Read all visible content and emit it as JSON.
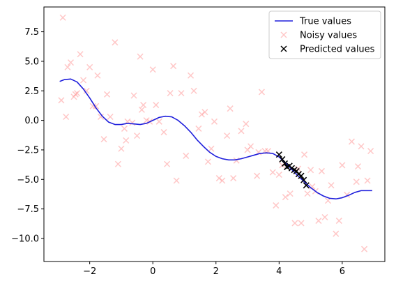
{
  "chart_data": {
    "type": "scatter",
    "xlim": [
      -3.45,
      7.35
    ],
    "ylim": [
      -11.95,
      9.6
    ],
    "xticks": [
      -2,
      0,
      2,
      4,
      6
    ],
    "xtick_labels": [
      "−2",
      "0",
      "2",
      "4",
      "6"
    ],
    "yticks": [
      -10.0,
      -7.5,
      -5.0,
      -2.5,
      0.0,
      2.5,
      5.0,
      7.5
    ],
    "ytick_labels": [
      "−10.0",
      "−7.5",
      "−5.0",
      "−2.5",
      "0.0",
      "2.5",
      "5.0",
      "7.5"
    ],
    "grid": false,
    "legend_position": "top-right",
    "series": [
      {
        "name": "True values",
        "kind": "line",
        "color": "#1f1fdc",
        "x": [
          -2.95,
          -2.8,
          -2.6,
          -2.4,
          -2.2,
          -2.0,
          -1.8,
          -1.6,
          -1.4,
          -1.2,
          -1.0,
          -0.8,
          -0.6,
          -0.4,
          -0.2,
          0.0,
          0.2,
          0.4,
          0.6,
          0.8,
          1.0,
          1.2,
          1.4,
          1.6,
          1.8,
          2.0,
          2.2,
          2.4,
          2.6,
          2.8,
          3.0,
          3.2,
          3.4,
          3.6,
          3.8,
          4.0,
          4.2,
          4.4,
          4.6,
          4.8,
          5.0,
          5.2,
          5.4,
          5.6,
          5.8,
          6.0,
          6.2,
          6.4,
          6.6,
          6.8,
          6.95
        ],
        "y": [
          3.3,
          3.45,
          3.5,
          3.25,
          2.65,
          1.9,
          1.05,
          0.35,
          -0.15,
          -0.35,
          -0.35,
          -0.25,
          -0.3,
          -0.35,
          -0.25,
          0.0,
          0.25,
          0.35,
          0.3,
          0.0,
          -0.45,
          -1.0,
          -1.65,
          -2.2,
          -2.7,
          -3.05,
          -3.25,
          -3.35,
          -3.35,
          -3.25,
          -3.1,
          -2.95,
          -2.8,
          -2.75,
          -2.8,
          -3.1,
          -3.6,
          -4.15,
          -4.7,
          -5.2,
          -5.7,
          -6.1,
          -6.4,
          -6.6,
          -6.65,
          -6.55,
          -6.35,
          -6.1,
          -5.95,
          -5.95,
          -5.95
        ]
      },
      {
        "name": "Noisy values",
        "kind": "scatter",
        "marker": "x",
        "color": "#ff9b9b",
        "opacity": 0.5,
        "x": [
          -2.9,
          -2.85,
          -2.75,
          -2.7,
          -2.6,
          -2.5,
          -2.45,
          -2.4,
          -2.3,
          -2.2,
          -2.1,
          -2.0,
          -1.9,
          -1.8,
          -1.75,
          -1.65,
          -1.55,
          -1.45,
          -1.35,
          -1.2,
          -1.1,
          -1.0,
          -0.9,
          -0.85,
          -0.8,
          -0.65,
          -0.6,
          -0.5,
          -0.4,
          -0.35,
          -0.3,
          -0.2,
          -0.1,
          0.0,
          0.1,
          0.2,
          0.35,
          0.45,
          0.55,
          0.65,
          0.75,
          0.9,
          1.05,
          1.2,
          1.3,
          1.45,
          1.55,
          1.65,
          1.75,
          1.85,
          1.95,
          2.1,
          2.2,
          2.35,
          2.45,
          2.55,
          2.65,
          2.8,
          2.95,
          3.0,
          3.1,
          3.3,
          3.35,
          3.45,
          3.55,
          3.65,
          3.8,
          3.9,
          4.0,
          4.1,
          4.2,
          4.35,
          4.5,
          4.6,
          4.7,
          4.8,
          4.9,
          5.0,
          5.05,
          5.15,
          5.25,
          5.35,
          5.45,
          5.55,
          5.65,
          5.8,
          5.9,
          6.0,
          6.15,
          6.3,
          6.45,
          6.5,
          6.6,
          6.7,
          6.8,
          6.9
        ],
        "y": [
          1.7,
          8.7,
          0.3,
          4.5,
          4.9,
          2.0,
          2.2,
          2.3,
          5.6,
          3.4,
          2.5,
          4.5,
          1.2,
          1.2,
          3.8,
          0.3,
          -1.6,
          2.2,
          0.3,
          6.6,
          -3.7,
          -2.4,
          -0.7,
          -1.7,
          -0.1,
          -0.2,
          2.1,
          -1.3,
          5.4,
          0.9,
          1.3,
          0.0,
          -0.1,
          4.3,
          1.3,
          -0.1,
          -1.0,
          -3.7,
          2.3,
          4.6,
          -5.1,
          2.3,
          -3.0,
          3.8,
          2.5,
          -0.7,
          0.5,
          0.7,
          -3.5,
          -2.4,
          -0.1,
          -4.9,
          -5.1,
          -1.3,
          1.0,
          -4.9,
          -3.4,
          -0.9,
          -0.3,
          -2.5,
          -2.2,
          -4.7,
          -2.7,
          2.4,
          -2.6,
          -2.6,
          -4.4,
          -7.2,
          -4.6,
          -3.8,
          -6.5,
          -6.2,
          -8.7,
          -4.1,
          -8.7,
          -2.9,
          -6.2,
          -4.2,
          -5.6,
          -6.0,
          -8.5,
          -4.3,
          -8.2,
          -6.8,
          -5.5,
          -9.6,
          -8.5,
          -3.8,
          -6.3,
          -1.8,
          -5.2,
          -3.9,
          -2.2,
          -10.9,
          -5.1,
          -2.6
        ]
      },
      {
        "name": "Predicted values",
        "kind": "scatter",
        "marker": "x",
        "color": "#000000",
        "x": [
          4.0,
          4.1,
          4.18,
          4.25,
          4.33,
          4.4,
          4.48,
          4.55,
          4.62,
          4.7,
          4.78,
          4.86
        ],
        "y": [
          -2.9,
          -3.3,
          -3.65,
          -3.95,
          -3.85,
          -4.05,
          -4.2,
          -4.3,
          -4.55,
          -4.7,
          -5.05,
          -5.5
        ]
      }
    ]
  }
}
